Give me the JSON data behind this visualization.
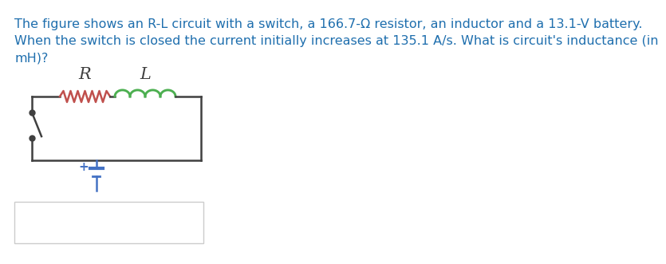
{
  "text_line1": "The figure shows an R-L circuit with a switch, a 166.7-Ω resistor, an inductor and a 13.1-V battery.",
  "text_line2": "When the switch is closed the current initially increases at 135.1 A/s. What is circuit's inductance (in",
  "text_line3": "mH)?",
  "text_color": "#1F6FAE",
  "bg_color": "#ffffff",
  "label_R": "R",
  "label_L": "L",
  "resistor_color": "#C0504D",
  "inductor_color": "#4CAF50",
  "wire_color": "#404040",
  "battery_color": "#4472C4",
  "font_size_text": 11.5,
  "font_size_labels": 13,
  "box_edge_color": "#cccccc"
}
